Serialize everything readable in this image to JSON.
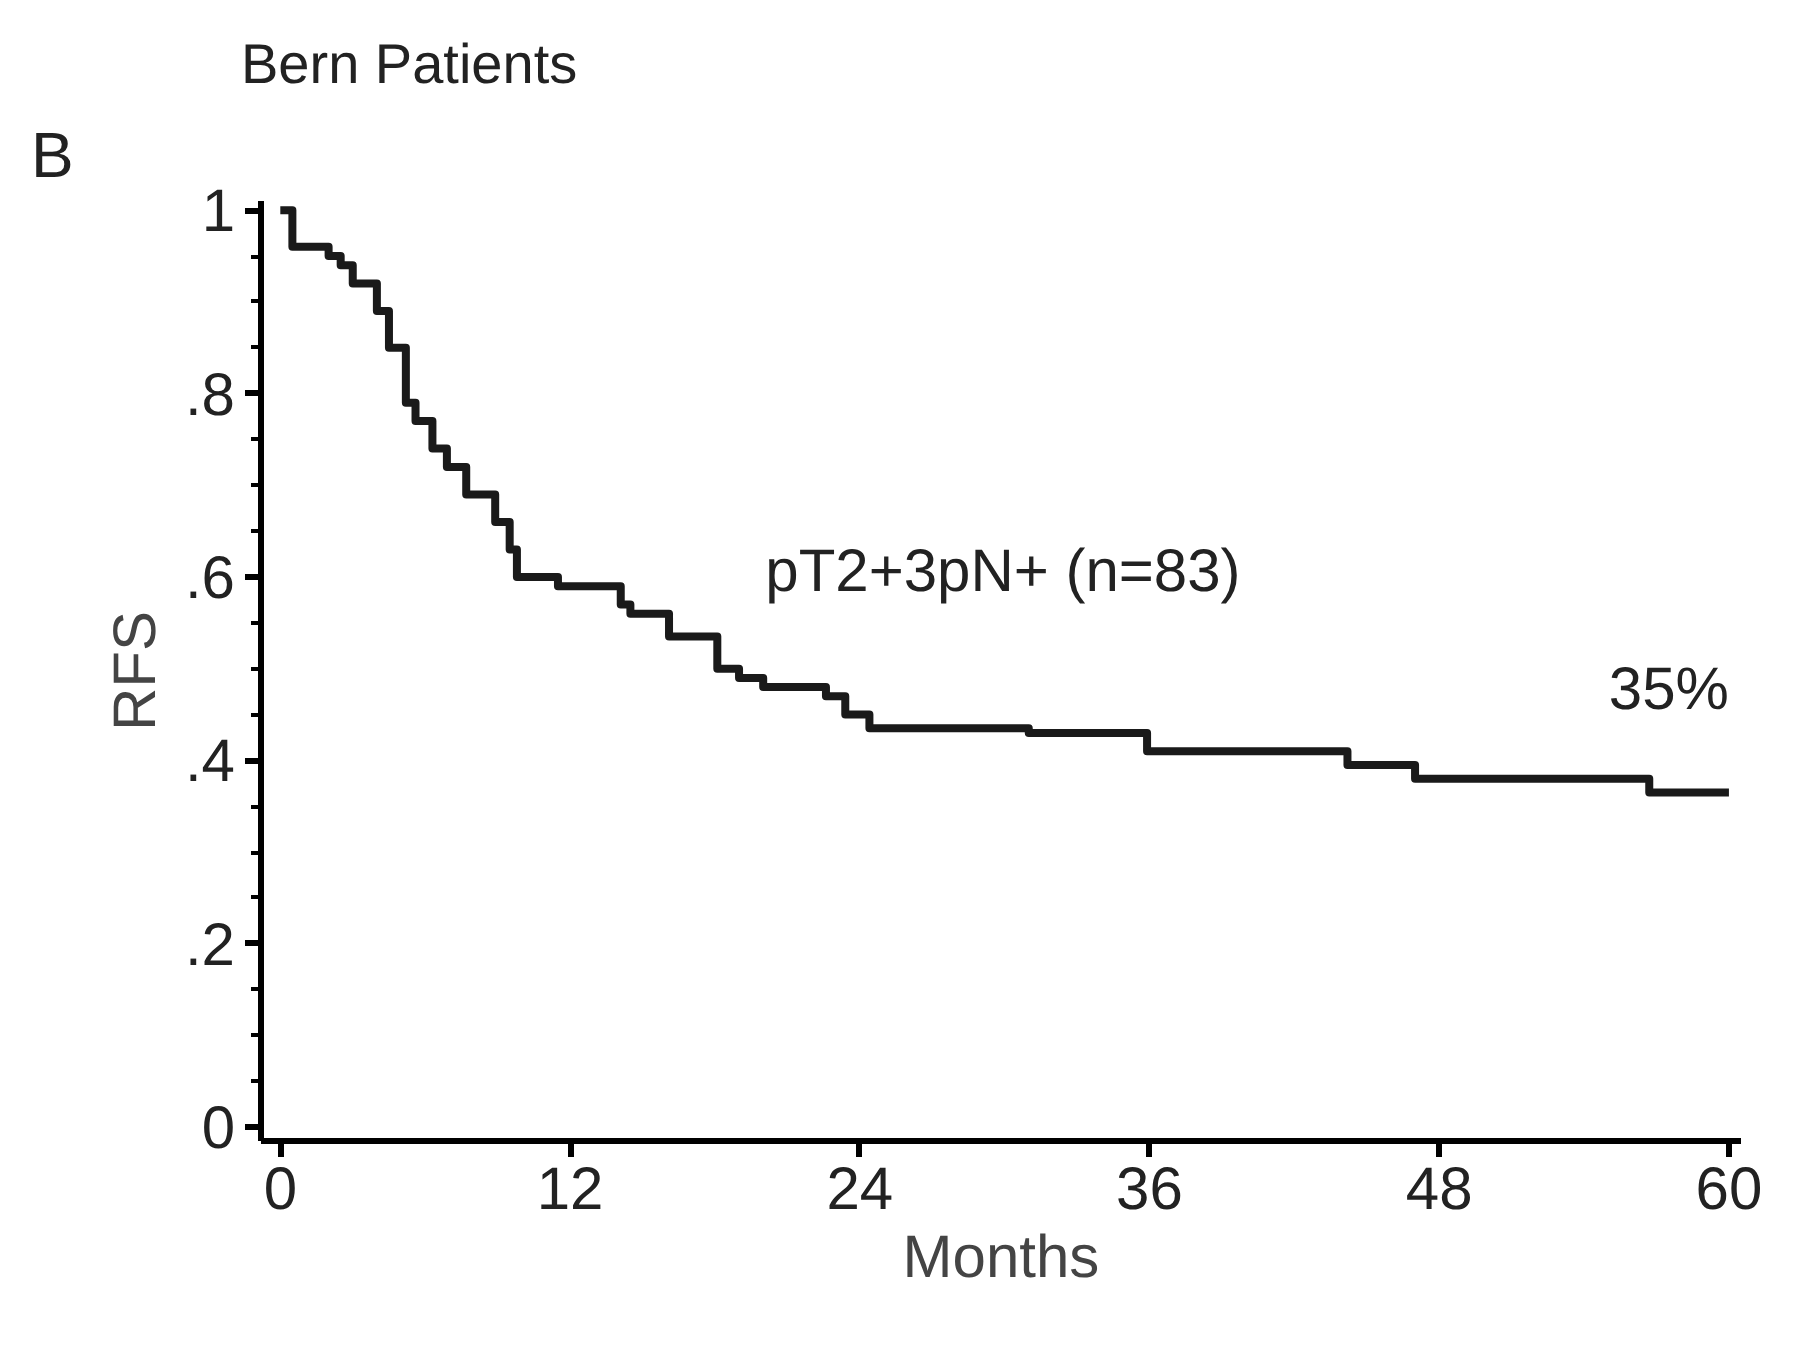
{
  "chart_data": {
    "type": "step",
    "title": "Bern Patients",
    "xlabel": "Months",
    "ylabel": "RFS",
    "x": [
      0,
      0.5,
      2,
      2.5,
      3,
      4,
      4.5,
      5.2,
      5.6,
      6.3,
      6.9,
      7.7,
      8.9,
      9.5,
      9.8,
      11.5,
      14.1,
      14.5,
      16.1,
      16.4,
      18.1,
      19,
      20,
      22.6,
      23.4,
      24.4,
      31,
      35.9,
      44.2,
      47,
      56.7,
      60
    ],
    "series": [
      {
        "name": "pT2+3pN+ (n=83)",
        "color": "#1a1a1a",
        "values": [
          1,
          0.96,
          0.95,
          0.94,
          0.92,
          0.89,
          0.85,
          0.79,
          0.77,
          0.74,
          0.72,
          0.69,
          0.66,
          0.63,
          0.6,
          0.59,
          0.57,
          0.56,
          0.535,
          0.535,
          0.5,
          0.49,
          0.48,
          0.47,
          0.45,
          0.435,
          0.43,
          0.41,
          0.395,
          0.38,
          0.365,
          0.365
        ]
      }
    ],
    "xlim": [
      -0.8,
      60.5
    ],
    "ylim": [
      -0.015,
      1.01
    ],
    "xticks": [
      0,
      12,
      24,
      36,
      48,
      60
    ],
    "yticks": [
      0,
      {
        "value": 0.2,
        "label": ".2"
      },
      {
        "value": 0.4,
        "label": ".4"
      },
      {
        "value": 0.6,
        "label": ".6"
      },
      {
        "value": 0.8,
        "label": ".8"
      },
      1
    ],
    "annotations": [
      "B",
      {
        "text": "35%",
        "x": 60,
        "y": 0.365
      }
    ],
    "grid": false,
    "line_style": "solid"
  }
}
